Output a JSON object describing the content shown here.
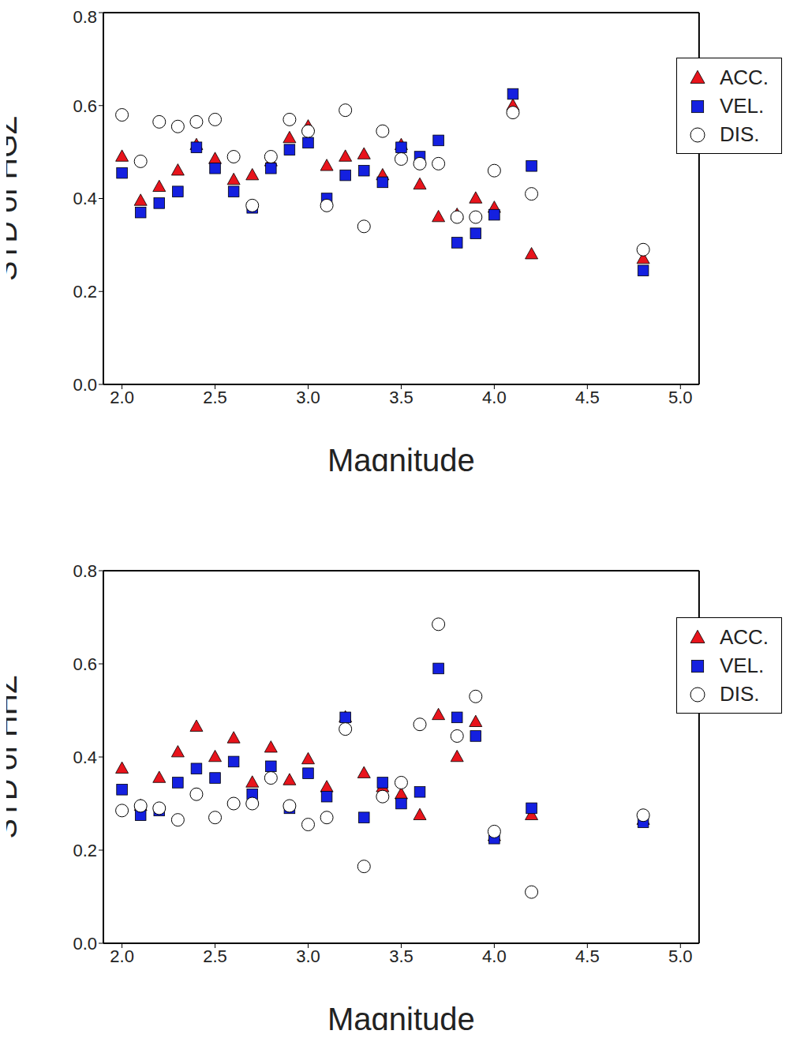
{
  "chart_data": [
    {
      "type": "scatter",
      "x_label": "Magnitude",
      "y_label": "STD of HGZ",
      "x": [
        2.0,
        2.1,
        2.2,
        2.3,
        2.4,
        2.5,
        2.6,
        2.7,
        2.8,
        2.9,
        3.0,
        3.1,
        3.2,
        3.3,
        3.4,
        3.5,
        3.6,
        3.7,
        3.8,
        3.9,
        4.0,
        4.1,
        4.2,
        4.8
      ],
      "series": [
        {
          "name": "ACC.",
          "color": "#e8141c",
          "marker": "triangle",
          "values": [
            0.49,
            0.395,
            0.425,
            0.46,
            0.515,
            0.485,
            0.44,
            0.45,
            0.48,
            0.53,
            0.555,
            0.47,
            0.49,
            0.495,
            0.45,
            0.515,
            0.43,
            0.36,
            0.365,
            0.4,
            0.38,
            0.6,
            0.28,
            0.27
          ]
        },
        {
          "name": "VEL.",
          "color": "#1420e0",
          "marker": "square",
          "values": [
            0.455,
            0.37,
            0.39,
            0.415,
            0.51,
            0.465,
            0.415,
            0.38,
            0.465,
            0.505,
            0.52,
            0.4,
            0.45,
            0.46,
            0.435,
            0.51,
            0.49,
            0.525,
            0.305,
            0.325,
            0.365,
            0.625,
            0.47,
            0.245
          ]
        },
        {
          "name": "DIS.",
          "color": "#ffffff",
          "marker": "circle",
          "values": [
            0.58,
            0.48,
            0.565,
            0.555,
            0.565,
            0.57,
            0.49,
            0.385,
            0.49,
            0.57,
            0.545,
            0.385,
            0.59,
            0.34,
            0.545,
            0.485,
            0.475,
            0.475,
            0.36,
            0.36,
            0.46,
            0.585,
            0.41,
            0.29
          ]
        }
      ],
      "xlim": [
        1.9,
        5.1
      ],
      "xticks": [
        {
          "value": 2,
          "label": "2.0"
        },
        {
          "value": 2.5,
          "label": "2.5"
        },
        {
          "value": 3,
          "label": "3.0"
        },
        {
          "value": 3.5,
          "label": "3.5"
        },
        {
          "value": 4,
          "label": "4.0"
        },
        {
          "value": 4.5,
          "label": "4.5"
        },
        {
          "value": 5,
          "label": "5.0"
        }
      ],
      "ylim": [
        0,
        0.8
      ],
      "yticks": [
        {
          "value": 0,
          "label": "0.0"
        },
        {
          "value": 0.2,
          "label": "0.2"
        },
        {
          "value": 0.4,
          "label": "0.4"
        },
        {
          "value": 0.6,
          "label": "0.6"
        },
        {
          "value": 0.8,
          "label": "0.8"
        }
      ],
      "legend": "upper right",
      "grid": false
    },
    {
      "type": "scatter",
      "x_label": "Magnitude",
      "y_label": "STD of HHZ",
      "x": [
        2.0,
        2.1,
        2.2,
        2.3,
        2.4,
        2.5,
        2.6,
        2.7,
        2.8,
        2.9,
        3.0,
        3.1,
        3.2,
        3.3,
        3.4,
        3.5,
        3.6,
        3.7,
        3.8,
        3.9,
        4.0,
        4.2,
        4.8
      ],
      "series": [
        {
          "name": "ACC.",
          "color": "#e8141c",
          "marker": "triangle",
          "values": [
            0.375,
            0.295,
            0.355,
            0.41,
            0.465,
            0.4,
            0.44,
            0.345,
            0.42,
            0.35,
            0.395,
            0.335,
            0.485,
            0.365,
            0.335,
            0.32,
            0.275,
            0.49,
            0.4,
            0.475,
            0.23,
            0.275,
            0.265
          ]
        },
        {
          "name": "VEL.",
          "color": "#1420e0",
          "marker": "square",
          "values": [
            0.33,
            0.275,
            0.285,
            0.345,
            0.375,
            0.355,
            0.39,
            0.32,
            0.38,
            0.29,
            0.365,
            0.315,
            0.485,
            0.27,
            0.345,
            0.3,
            0.325,
            0.59,
            0.485,
            0.445,
            0.225,
            0.29,
            0.26
          ]
        },
        {
          "name": "DIS.",
          "color": "#ffffff",
          "marker": "circle",
          "values": [
            0.285,
            0.295,
            0.29,
            0.265,
            0.32,
            0.27,
            0.3,
            0.3,
            0.355,
            0.295,
            0.255,
            0.27,
            0.46,
            0.165,
            0.315,
            0.345,
            0.47,
            0.685,
            0.445,
            0.53,
            0.24,
            0.11,
            0.275
          ]
        }
      ],
      "xlim": [
        1.9,
        5.1
      ],
      "xticks": [
        {
          "value": 2,
          "label": "2.0"
        },
        {
          "value": 2.5,
          "label": "2.5"
        },
        {
          "value": 3,
          "label": "3.0"
        },
        {
          "value": 3.5,
          "label": "3.5"
        },
        {
          "value": 4,
          "label": "4.0"
        },
        {
          "value": 4.5,
          "label": "4.5"
        },
        {
          "value": 5,
          "label": "5.0"
        }
      ],
      "ylim": [
        0,
        0.8
      ],
      "yticks": [
        {
          "value": 0,
          "label": "0.0"
        },
        {
          "value": 0.2,
          "label": "0.2"
        },
        {
          "value": 0.4,
          "label": "0.4"
        },
        {
          "value": 0.6,
          "label": "0.6"
        },
        {
          "value": 0.8,
          "label": "0.8"
        }
      ],
      "legend": "upper right",
      "grid": false
    }
  ]
}
